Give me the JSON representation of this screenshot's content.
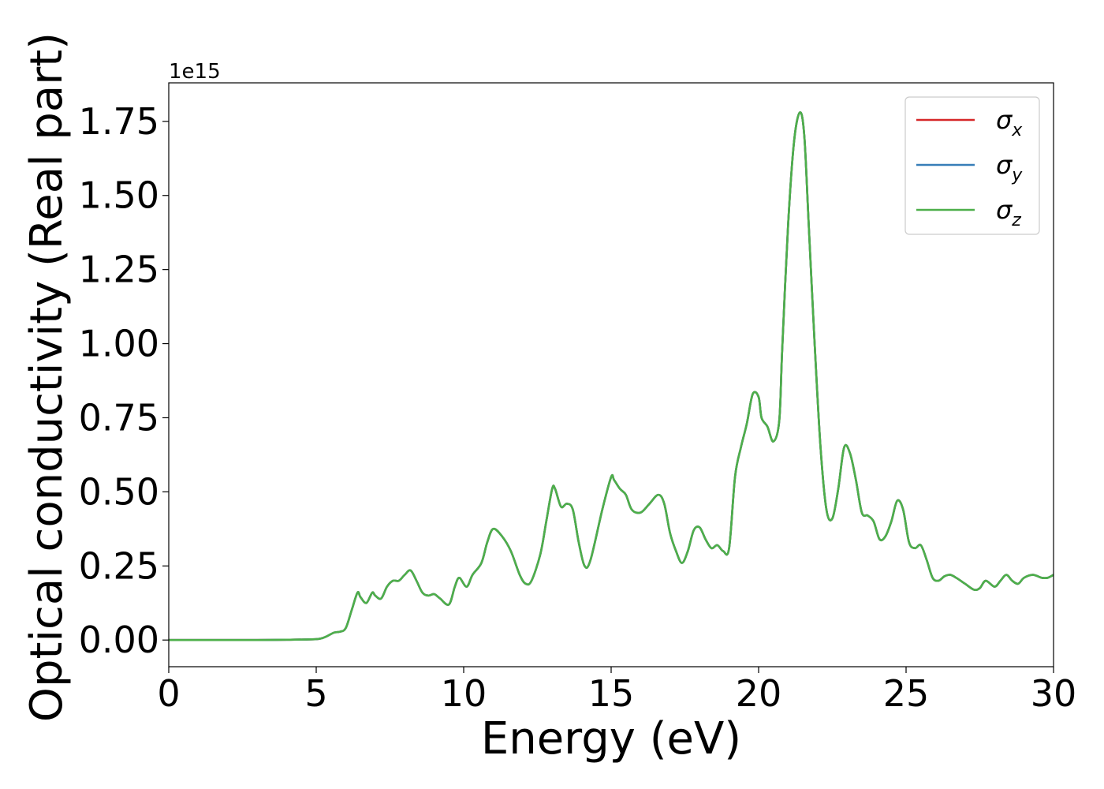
{
  "chart_data": {
    "type": "line",
    "xlabel": "Energy (eV)",
    "ylabel": "Optical conductivity (Real part)",
    "y_offset_label": "1e15",
    "xlim": [
      0,
      30
    ],
    "ylim": [
      -0.09,
      1.88
    ],
    "x_ticks": [
      0,
      5,
      10,
      15,
      20,
      25,
      30
    ],
    "x_tick_labels": [
      "0",
      "5",
      "10",
      "15",
      "20",
      "25",
      "30"
    ],
    "y_ticks": [
      0,
      0.25,
      0.5,
      0.75,
      1.0,
      1.25,
      1.5,
      1.75
    ],
    "y_tick_labels": [
      "0.00",
      "0.25",
      "0.50",
      "0.75",
      "1.00",
      "1.25",
      "1.50",
      "1.75"
    ],
    "grid": false,
    "legend": {
      "placement": "top-right"
    },
    "x": [
      0,
      1,
      2,
      3,
      4,
      5,
      5.3,
      5.6,
      5.8,
      6.0,
      6.2,
      6.4,
      6.5,
      6.7,
      6.9,
      7.0,
      7.2,
      7.4,
      7.6,
      7.8,
      8.0,
      8.2,
      8.4,
      8.6,
      8.8,
      9.0,
      9.2,
      9.5,
      9.7,
      9.85,
      10.1,
      10.3,
      10.6,
      10.8,
      11.0,
      11.3,
      11.6,
      11.9,
      12.1,
      12.3,
      12.6,
      12.8,
      13.0,
      13.1,
      13.3,
      13.5,
      13.7,
      13.9,
      14.1,
      14.3,
      14.7,
      15.0,
      15.1,
      15.3,
      15.5,
      15.7,
      16.0,
      16.3,
      16.6,
      16.8,
      17.0,
      17.2,
      17.4,
      17.6,
      17.8,
      18.0,
      18.2,
      18.4,
      18.6,
      18.8,
      19.0,
      19.2,
      19.4,
      19.6,
      19.8,
      20.0,
      20.1,
      20.3,
      20.5,
      20.7,
      20.8,
      21.0,
      21.2,
      21.4,
      21.55,
      21.7,
      21.9,
      22.1,
      22.3,
      22.5,
      22.7,
      22.9,
      23.1,
      23.3,
      23.5,
      23.7,
      23.9,
      24.1,
      24.3,
      24.5,
      24.7,
      24.9,
      25.1,
      25.3,
      25.5,
      25.7,
      25.9,
      26.1,
      26.3,
      26.5,
      26.7,
      27.0,
      27.3,
      27.5,
      27.7,
      28.0,
      28.2,
      28.4,
      28.6,
      28.8,
      29.0,
      29.3,
      29.6,
      29.8,
      30.0
    ],
    "series": [
      {
        "name": "x",
        "color": "#d62728",
        "values": [
          0,
          0,
          0,
          0,
          0.001,
          0.003,
          0.01,
          0.025,
          0.028,
          0.04,
          0.1,
          0.16,
          0.145,
          0.125,
          0.16,
          0.15,
          0.14,
          0.18,
          0.2,
          0.2,
          0.22,
          0.235,
          0.2,
          0.16,
          0.15,
          0.155,
          0.14,
          0.12,
          0.18,
          0.21,
          0.18,
          0.22,
          0.26,
          0.33,
          0.375,
          0.35,
          0.3,
          0.22,
          0.19,
          0.2,
          0.29,
          0.4,
          0.51,
          0.51,
          0.45,
          0.46,
          0.44,
          0.33,
          0.25,
          0.27,
          0.44,
          0.55,
          0.54,
          0.51,
          0.49,
          0.44,
          0.43,
          0.46,
          0.49,
          0.46,
          0.36,
          0.3,
          0.26,
          0.3,
          0.37,
          0.38,
          0.34,
          0.31,
          0.32,
          0.3,
          0.31,
          0.55,
          0.65,
          0.73,
          0.83,
          0.82,
          0.75,
          0.72,
          0.67,
          0.74,
          0.98,
          1.4,
          1.68,
          1.78,
          1.7,
          1.4,
          1.0,
          0.65,
          0.44,
          0.41,
          0.51,
          0.65,
          0.63,
          0.54,
          0.43,
          0.42,
          0.4,
          0.34,
          0.35,
          0.4,
          0.47,
          0.44,
          0.33,
          0.31,
          0.32,
          0.27,
          0.21,
          0.2,
          0.215,
          0.22,
          0.21,
          0.19,
          0.17,
          0.175,
          0.2,
          0.18,
          0.2,
          0.22,
          0.2,
          0.19,
          0.21,
          0.22,
          0.21,
          0.21,
          0.22
        ]
      },
      {
        "name": "y",
        "color": "#377eb8",
        "values": [
          0,
          0,
          0,
          0,
          0.001,
          0.003,
          0.01,
          0.025,
          0.028,
          0.04,
          0.1,
          0.16,
          0.145,
          0.125,
          0.16,
          0.15,
          0.14,
          0.18,
          0.2,
          0.2,
          0.22,
          0.235,
          0.2,
          0.16,
          0.15,
          0.155,
          0.14,
          0.12,
          0.18,
          0.21,
          0.18,
          0.22,
          0.26,
          0.33,
          0.375,
          0.35,
          0.3,
          0.22,
          0.19,
          0.2,
          0.29,
          0.4,
          0.51,
          0.51,
          0.45,
          0.46,
          0.44,
          0.33,
          0.25,
          0.27,
          0.44,
          0.55,
          0.54,
          0.51,
          0.49,
          0.44,
          0.43,
          0.46,
          0.49,
          0.46,
          0.36,
          0.3,
          0.26,
          0.3,
          0.37,
          0.38,
          0.34,
          0.31,
          0.32,
          0.3,
          0.31,
          0.55,
          0.65,
          0.73,
          0.83,
          0.82,
          0.75,
          0.72,
          0.67,
          0.74,
          0.98,
          1.4,
          1.68,
          1.78,
          1.7,
          1.4,
          1.0,
          0.65,
          0.44,
          0.41,
          0.51,
          0.65,
          0.63,
          0.54,
          0.43,
          0.42,
          0.4,
          0.34,
          0.35,
          0.4,
          0.47,
          0.44,
          0.33,
          0.31,
          0.32,
          0.27,
          0.21,
          0.2,
          0.215,
          0.22,
          0.21,
          0.19,
          0.17,
          0.175,
          0.2,
          0.18,
          0.2,
          0.22,
          0.2,
          0.19,
          0.21,
          0.22,
          0.21,
          0.21,
          0.22
        ]
      },
      {
        "name": "z",
        "color": "#4daf4a",
        "values": [
          0,
          0,
          0,
          0,
          0.001,
          0.003,
          0.01,
          0.025,
          0.028,
          0.04,
          0.1,
          0.16,
          0.145,
          0.125,
          0.16,
          0.15,
          0.14,
          0.18,
          0.2,
          0.2,
          0.22,
          0.235,
          0.2,
          0.16,
          0.15,
          0.155,
          0.14,
          0.12,
          0.18,
          0.21,
          0.18,
          0.22,
          0.26,
          0.33,
          0.375,
          0.35,
          0.3,
          0.22,
          0.19,
          0.2,
          0.29,
          0.4,
          0.51,
          0.51,
          0.45,
          0.46,
          0.44,
          0.33,
          0.25,
          0.27,
          0.44,
          0.55,
          0.54,
          0.51,
          0.49,
          0.44,
          0.43,
          0.46,
          0.49,
          0.46,
          0.36,
          0.3,
          0.26,
          0.3,
          0.37,
          0.38,
          0.34,
          0.31,
          0.32,
          0.3,
          0.31,
          0.55,
          0.65,
          0.73,
          0.83,
          0.82,
          0.75,
          0.72,
          0.67,
          0.74,
          0.98,
          1.4,
          1.68,
          1.78,
          1.7,
          1.4,
          1.0,
          0.65,
          0.44,
          0.41,
          0.51,
          0.65,
          0.63,
          0.54,
          0.43,
          0.42,
          0.4,
          0.34,
          0.35,
          0.4,
          0.47,
          0.44,
          0.33,
          0.31,
          0.32,
          0.27,
          0.21,
          0.2,
          0.215,
          0.22,
          0.21,
          0.19,
          0.17,
          0.175,
          0.2,
          0.18,
          0.2,
          0.22,
          0.2,
          0.19,
          0.21,
          0.22,
          0.21,
          0.21,
          0.22
        ]
      }
    ],
    "legend_symbol": "σ"
  }
}
